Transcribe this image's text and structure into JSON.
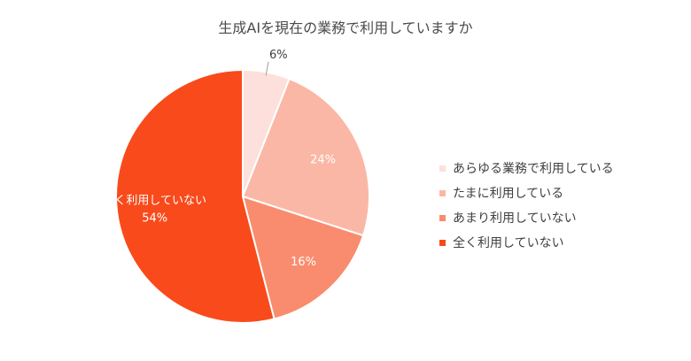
{
  "chart_data": {
    "type": "pie",
    "title": "生成AIを現在の業務で利用していますか",
    "categories": [
      "あらゆる業務で利用している",
      "たまに利用している",
      "あまり利用していない",
      "全く利用していない"
    ],
    "values": [
      6,
      24,
      16,
      54
    ],
    "value_labels": [
      "6%",
      "24%",
      "16%",
      "54%"
    ],
    "colors": [
      "#fde0db",
      "#fbb7a5",
      "#f98c6e",
      "#f94a1b"
    ],
    "label_colors": [
      "#404040",
      "#ffffff",
      "#ffffff",
      "#ffffff"
    ],
    "slice_texts": [
      "",
      "",
      "",
      "全く利用していない"
    ],
    "legend_position": "right",
    "start_angle_deg": 0,
    "direction": "clockwise"
  }
}
